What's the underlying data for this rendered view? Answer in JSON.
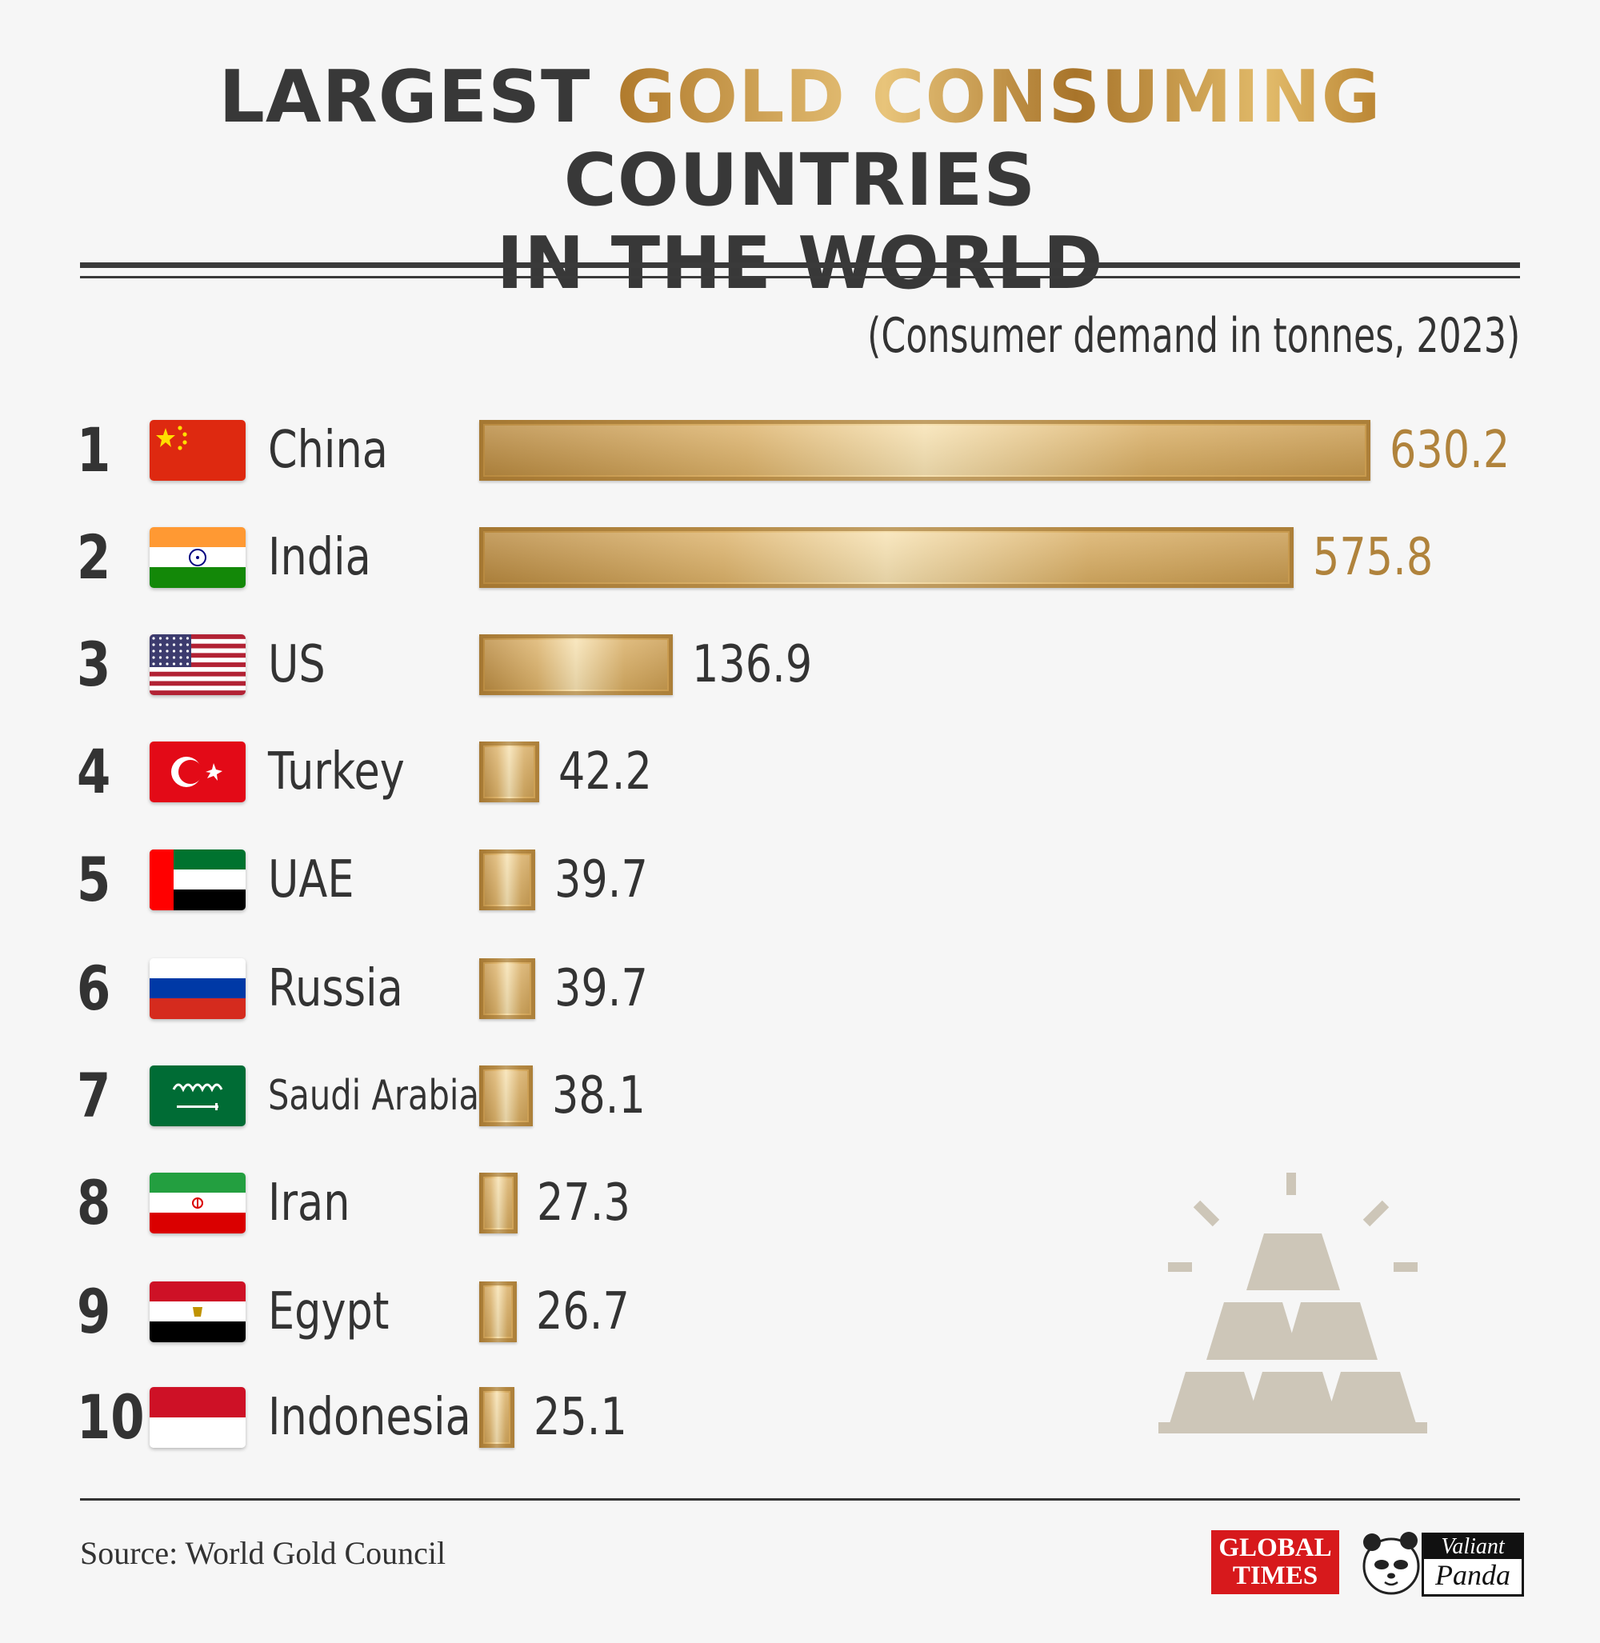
{
  "title": {
    "part1": "LARGEST ",
    "part_gold": "GOLD CONSUMING",
    "part2": " COUNTRIES",
    "line2": "IN THE WORLD",
    "gold_color": "#c49040"
  },
  "subtitle": "(Consumer demand in tonnes, 2023)",
  "colors": {
    "bar": "#d4a85c",
    "text": "#333333",
    "value_gold": "#b0833c",
    "background": "#f6f6f6"
  },
  "chart_data": {
    "type": "bar",
    "orientation": "horizontal",
    "title": "LARGEST GOLD CONSUMING COUNTRIES IN THE WORLD",
    "subtitle": "(Consumer demand in tonnes, 2023)",
    "xlabel": "",
    "ylabel": "",
    "grid": false,
    "categories": [
      "China",
      "India",
      "US",
      "Turkey",
      "UAE",
      "Russia",
      "Saudi Arabia",
      "Iran",
      "Egypt",
      "Indonesia"
    ],
    "ranks": [
      "1",
      "2",
      "3",
      "4",
      "5",
      "6",
      "7",
      "8",
      "9",
      "10"
    ],
    "values": [
      630.2,
      575.8,
      136.9,
      42.2,
      39.7,
      39.7,
      38.1,
      27.3,
      26.7,
      25.1
    ],
    "value_labels": [
      "630.2",
      "575.8",
      "136.9",
      "42.2",
      "39.7",
      "39.7",
      "38.1",
      "27.3",
      "26.7",
      "25.1"
    ],
    "flag_icons": [
      "china-flag-icon",
      "india-flag-icon",
      "us-flag-icon",
      "turkey-flag-icon",
      "uae-flag-icon",
      "russia-flag-icon",
      "saudi-arabia-flag-icon",
      "iran-flag-icon",
      "egypt-flag-icon",
      "indonesia-flag-icon"
    ]
  },
  "decoration_icon": "gold-bars-icon",
  "source": "Source: World Gold Council",
  "logos": {
    "global_times": {
      "line1": "GLOBAL",
      "line2": "TIMES"
    },
    "valiant_panda": {
      "line1": "Valiant",
      "line2": "Panda",
      "icon": "panda-icon"
    }
  }
}
